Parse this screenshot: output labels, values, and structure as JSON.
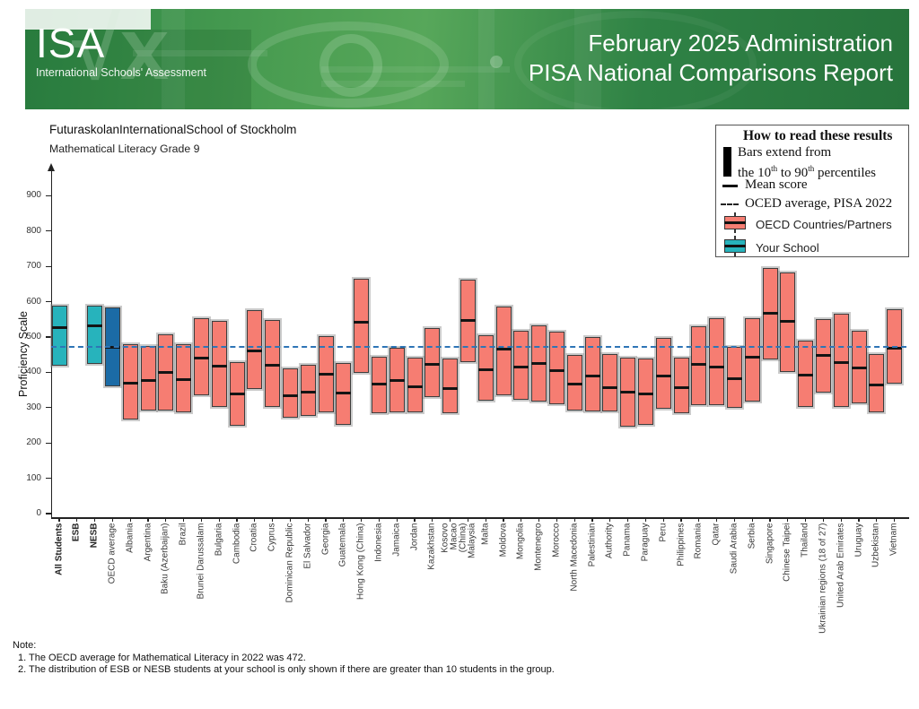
{
  "header": {
    "logo_title": "ISA",
    "logo_subtitle": "International Schools' Assessment",
    "title_line1": "February 2025 Administration",
    "title_line2": "PISA National Comparisons Report"
  },
  "chart": {
    "title": "FuturaskolanInternationalSchool of Stockholm",
    "subtitle": "Mathematical Literacy Grade 9",
    "y_axis_label": "Proficiency Scale"
  },
  "legend": {
    "title": "How to read these results",
    "bars_line1": "Bars extend from",
    "p2_pre": "the 10",
    "p2_sup1": "th",
    "p2_mid": " to 90",
    "p2_sup2": "th",
    "p2_post": " percentiles",
    "mean_label": "Mean score",
    "oecd_avg_label": "OCED average, PISA 2022",
    "countries_label": "OECD Countries/Partners",
    "school_label": "Your School"
  },
  "notes": {
    "heading": "Note:",
    "note1": "1. The OECD average for Mathematical Literacy in 2022 was 472.",
    "note2": "2. The distribution of ESB or NESB students at your school is only shown if there are greater than 10 students in the group."
  },
  "colors": {
    "school_bar": "#27b3bc",
    "oecd_average_bar": "#1b6ba6",
    "country_bar": "#f67d72",
    "mean_line": "#141414",
    "oecd_dashed_line": "#2e75b6",
    "header_green": "#2f8746"
  },
  "chart_data": {
    "type": "percentile-bar",
    "title": "FuturaskolanInternationalSchool of Stockholm",
    "subtitle": "Mathematical Literacy Grade 9",
    "ylabel": "Proficiency Scale",
    "ylim": [
      0,
      950
    ],
    "yticks": [
      0,
      100,
      200,
      300,
      400,
      500,
      600,
      700,
      800,
      900
    ],
    "oecd_average_line": 472,
    "legend_position": "top-right",
    "columns": [
      {
        "label": "All Students",
        "group": "school",
        "bold": true,
        "p10": 418,
        "mean": 528,
        "p90": 588
      },
      {
        "label": "ESB",
        "group": "none",
        "bold": true
      },
      {
        "label": "NESB",
        "group": "school",
        "bold": true,
        "p10": 424,
        "mean": 533,
        "p90": 588
      },
      {
        "label": "OECD average",
        "group": "oecd",
        "p10": 360,
        "mean": 472,
        "p90": 585
      },
      {
        "label": "Albania",
        "group": "country",
        "p10": 267,
        "mean": 371,
        "p90": 479
      },
      {
        "label": "Argentina",
        "group": "country",
        "p10": 291,
        "mean": 379,
        "p90": 474
      },
      {
        "label": "Baku (Azerbaijan)",
        "group": "country",
        "p10": 293,
        "mean": 400,
        "p90": 508
      },
      {
        "label": "Brazil",
        "group": "country",
        "p10": 288,
        "mean": 381,
        "p90": 480
      },
      {
        "label": "Brunei Darussalam",
        "group": "country",
        "p10": 335,
        "mean": 442,
        "p90": 553
      },
      {
        "label": "Bulgaria",
        "group": "country",
        "p10": 301,
        "mean": 420,
        "p90": 545
      },
      {
        "label": "Cambodia",
        "group": "country",
        "p10": 249,
        "mean": 339,
        "p90": 428
      },
      {
        "label": "Croatia",
        "group": "country",
        "p10": 352,
        "mean": 462,
        "p90": 576
      },
      {
        "label": "Cyprus",
        "group": "country",
        "p10": 303,
        "mean": 421,
        "p90": 549
      },
      {
        "label": "Dominican Republic",
        "group": "country",
        "p10": 272,
        "mean": 335,
        "p90": 411
      },
      {
        "label": "El Salvador",
        "group": "country",
        "p10": 277,
        "mean": 345,
        "p90": 421
      },
      {
        "label": "Georgia",
        "group": "country",
        "p10": 286,
        "mean": 396,
        "p90": 502
      },
      {
        "label": "Guatemala",
        "group": "country",
        "p10": 250,
        "mean": 342,
        "p90": 426
      },
      {
        "label": "Hong Kong (China)",
        "group": "country",
        "p10": 398,
        "mean": 542,
        "p90": 665
      },
      {
        "label": "Indonesia",
        "group": "country",
        "p10": 285,
        "mean": 369,
        "p90": 445
      },
      {
        "label": "Jamaica",
        "group": "country",
        "p10": 286,
        "mean": 379,
        "p90": 470
      },
      {
        "label": "Jordan",
        "group": "country",
        "p10": 286,
        "mean": 360,
        "p90": 441
      },
      {
        "label": "Kazakhstan",
        "group": "country",
        "p10": 331,
        "mean": 424,
        "p90": 525
      },
      {
        "label": "Kosovo\nMacao",
        "group": "country",
        "p10": 284,
        "mean": 356,
        "p90": 438
      },
      {
        "label": "(China)\nMalaysia",
        "group": "country",
        "p10": 428,
        "mean": 548,
        "p90": 663
      },
      {
        "label": "Malta",
        "group": "country",
        "p10": 320,
        "mean": 409,
        "p90": 506
      },
      {
        "label": "Moldova",
        "group": "country",
        "p10": 335,
        "mean": 466,
        "p90": 586
      },
      {
        "label": "Mongolia",
        "group": "country",
        "p10": 322,
        "mean": 415,
        "p90": 518
      },
      {
        "label": "Montenegro",
        "group": "country",
        "p10": 318,
        "mean": 426,
        "p90": 534
      },
      {
        "label": "Morocco",
        "group": "country",
        "p10": 310,
        "mean": 407,
        "p90": 514
      },
      {
        "label": "North Macedonia",
        "group": "country",
        "p10": 293,
        "mean": 369,
        "p90": 449
      },
      {
        "label": "Palestinian",
        "group": "country",
        "p10": 290,
        "mean": 390,
        "p90": 499
      },
      {
        "label": "Authority",
        "group": "country",
        "p10": 289,
        "mean": 359,
        "p90": 452
      },
      {
        "label": "Panama",
        "group": "country",
        "p10": 247,
        "mean": 344,
        "p90": 442
      },
      {
        "label": "Paraguay",
        "group": "country",
        "p10": 250,
        "mean": 340,
        "p90": 438
      },
      {
        "label": "Peru",
        "group": "country",
        "p10": 298,
        "mean": 392,
        "p90": 497
      },
      {
        "label": "Philippines",
        "group": "country",
        "p10": 284,
        "mean": 357,
        "p90": 442
      },
      {
        "label": "Romania",
        "group": "country",
        "p10": 308,
        "mean": 425,
        "p90": 530
      },
      {
        "label": "Qatar",
        "group": "country",
        "p10": 306,
        "mean": 416,
        "p90": 553
      },
      {
        "label": "Saudi Arabia",
        "group": "country",
        "p10": 299,
        "mean": 384,
        "p90": 473
      },
      {
        "label": "Serbia",
        "group": "country",
        "p10": 318,
        "mean": 443,
        "p90": 553
      },
      {
        "label": "Singapore",
        "group": "country",
        "p10": 437,
        "mean": 568,
        "p90": 696
      },
      {
        "label": "Chinese Taipei",
        "group": "country",
        "p10": 401,
        "mean": 545,
        "p90": 683
      },
      {
        "label": "Thailand",
        "group": "country",
        "p10": 302,
        "mean": 394,
        "p90": 490
      },
      {
        "label": "Ukrainian regions (18 of 27)",
        "group": "country",
        "p10": 343,
        "mean": 450,
        "p90": 551
      },
      {
        "label": "United Arab Emirates",
        "group": "country",
        "p10": 302,
        "mean": 428,
        "p90": 566
      },
      {
        "label": "Uruguay",
        "group": "country",
        "p10": 311,
        "mean": 413,
        "p90": 518
      },
      {
        "label": "Uzbekistan",
        "group": "country",
        "p10": 288,
        "mean": 366,
        "p90": 452
      },
      {
        "label": "Vietnam",
        "group": "country",
        "p10": 368,
        "mean": 469,
        "p90": 579
      }
    ]
  }
}
